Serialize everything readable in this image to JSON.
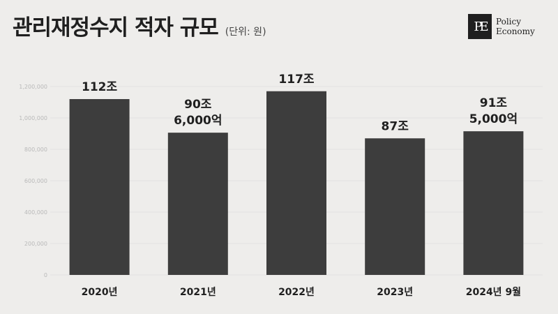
{
  "header": {
    "title": "관리재정수지 적자 규모",
    "unit": "(단위: 원)"
  },
  "logo": {
    "mark": "PE",
    "line1": "Policy",
    "line2": "Economy"
  },
  "colors": {
    "background": "#eeedeb",
    "bar": "#3d3d3d",
    "text": "#1f1f1f",
    "grid": "#dcdcdc"
  },
  "chart_data": {
    "type": "bar",
    "title": "관리재정수지 적자 규모",
    "subtitle": "(단위: 원)",
    "categories": [
      "2020년",
      "2021년",
      "2022년",
      "2023년",
      "2024년 9월"
    ],
    "values": [
      1120000,
      906000,
      1170000,
      870000,
      915000
    ],
    "data_labels": [
      [
        "112조"
      ],
      [
        "90조",
        "6,000억"
      ],
      [
        "117조"
      ],
      [
        "87조"
      ],
      [
        "91조",
        "5,000억"
      ]
    ],
    "yticks": [
      "0",
      "200,000",
      "400,000",
      "600,000",
      "800,000",
      "1,000,000",
      "1,200,000"
    ],
    "ylim": [
      0,
      1200000
    ],
    "grid": true,
    "legend": "none"
  }
}
